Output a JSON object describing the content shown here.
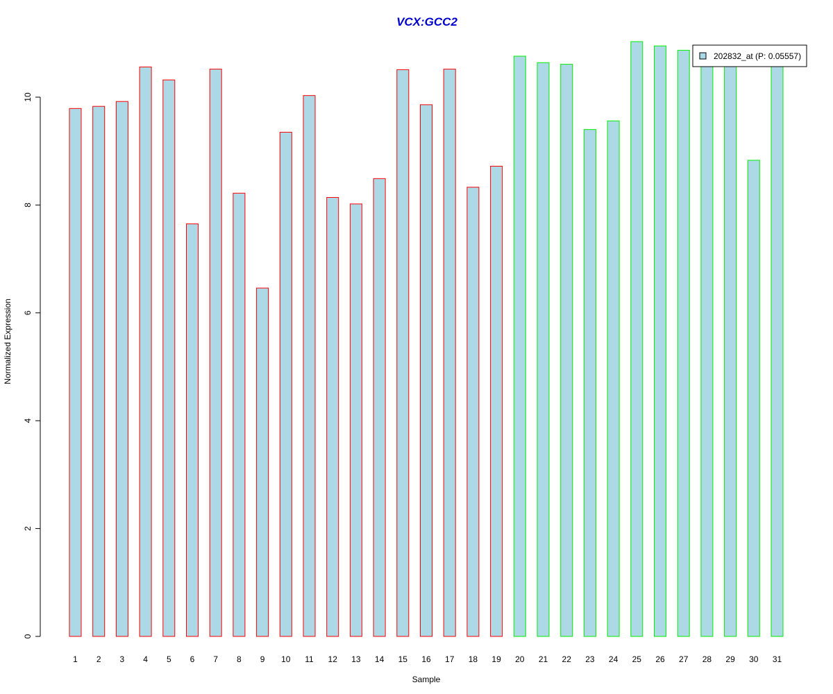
{
  "chart_data": {
    "type": "bar",
    "title": "VCX:GCC2",
    "xlabel": "Sample",
    "ylabel": "Normalized Expression",
    "ylim": [
      0,
      11
    ],
    "yticks": [
      0,
      2,
      4,
      6,
      8,
      10
    ],
    "categories": [
      "1",
      "2",
      "3",
      "4",
      "5",
      "6",
      "7",
      "8",
      "9",
      "10",
      "11",
      "12",
      "13",
      "14",
      "15",
      "16",
      "17",
      "18",
      "19",
      "20",
      "21",
      "22",
      "23",
      "24",
      "25",
      "26",
      "27",
      "28",
      "29",
      "30",
      "31"
    ],
    "values": [
      9.79,
      9.83,
      9.92,
      10.56,
      10.32,
      7.65,
      10.52,
      8.22,
      6.46,
      9.35,
      10.03,
      8.14,
      8.02,
      8.49,
      10.51,
      9.86,
      10.52,
      8.33,
      8.72,
      10.76,
      10.64,
      10.61,
      9.4,
      9.56,
      11.03,
      10.95,
      10.87,
      10.78,
      10.75,
      8.83,
      10.7
    ],
    "groups": [
      "a",
      "a",
      "a",
      "a",
      "a",
      "a",
      "a",
      "a",
      "a",
      "a",
      "a",
      "a",
      "a",
      "a",
      "a",
      "a",
      "a",
      "a",
      "a",
      "b",
      "b",
      "b",
      "b",
      "b",
      "b",
      "b",
      "b",
      "b",
      "b",
      "b",
      "b"
    ],
    "group_colors": {
      "a": "#ff0000",
      "b": "#00ee00"
    },
    "fill_color": "#add8e6",
    "title_color": "#0000cc",
    "grid": false,
    "legend": {
      "placement": "top-right",
      "label": "202832_at (P: 0.05557)"
    }
  }
}
